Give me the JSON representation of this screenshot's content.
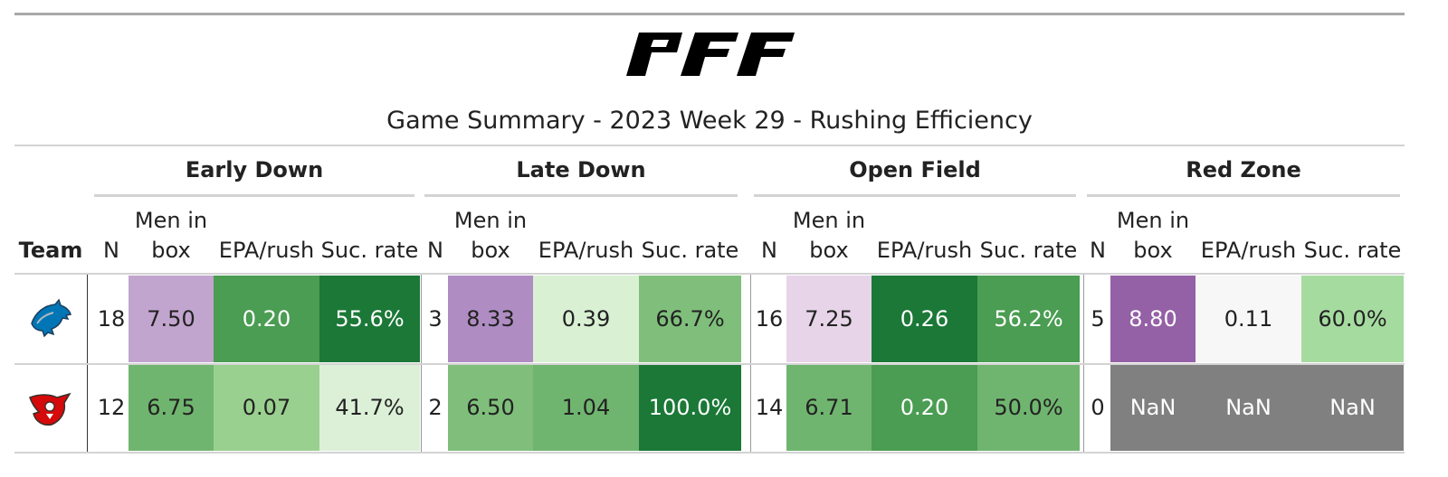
{
  "brand": "PFF",
  "chart_data": {
    "type": "table",
    "title": "Game Summary - 2023 Week 29 - Rushing Efficiency",
    "team_header": "Team",
    "groups": [
      {
        "name": "Early Down",
        "columns": [
          "N",
          "Men in box",
          "EPA/rush",
          "Suc. rate"
        ]
      },
      {
        "name": "Late Down",
        "columns": [
          "N",
          "Men in box",
          "EPA/rush",
          "Suc. rate"
        ]
      },
      {
        "name": "Open Field",
        "columns": [
          "N",
          "Men in box",
          "EPA/rush",
          "Suc. rate"
        ]
      },
      {
        "name": "Red Zone",
        "columns": [
          "N",
          "Men in box",
          "EPA/rush",
          "Suc. rate"
        ]
      }
    ],
    "rows": [
      {
        "team_icon": "detroit-lions-logo-icon",
        "cells": [
          [
            "18",
            "7.50",
            "0.20",
            "55.6%"
          ],
          [
            "3",
            "8.33",
            "0.39",
            "66.7%"
          ],
          [
            "16",
            "7.25",
            "0.26",
            "56.2%"
          ],
          [
            "5",
            "8.80",
            "0.11",
            "60.0%"
          ]
        ],
        "colors": [
          [
            "#ffffff",
            "#c2a5cf",
            "#4a9d52",
            "#1b7837"
          ],
          [
            "#ffffff",
            "#af8dc3",
            "#d9f0d3",
            "#7fbf7b"
          ],
          [
            "#ffffff",
            "#e7d4e8",
            "#1b7837",
            "#4a9d52"
          ],
          [
            "#ffffff",
            "#9460a6",
            "#f7f7f7",
            "#a6dba0"
          ]
        ]
      },
      {
        "team_icon": "tampa-bay-buccaneers-logo-icon",
        "cells": [
          [
            "12",
            "6.75",
            "0.07",
            "41.7%"
          ],
          [
            "2",
            "6.50",
            "1.04",
            "100.0%"
          ],
          [
            "14",
            "6.71",
            "0.20",
            "50.0%"
          ],
          [
            "0",
            "NaN",
            "NaN",
            "NaN"
          ]
        ],
        "colors": [
          [
            "#ffffff",
            "#70b56f",
            "#9ad08f",
            "#dcf0d8"
          ],
          [
            "#ffffff",
            "#7fbf7b",
            "#70b56f",
            "#1b7837"
          ],
          [
            "#ffffff",
            "#70b56f",
            "#4a9d52",
            "#70b56f"
          ],
          [
            "#ffffff",
            "#808080",
            "#808080",
            "#808080"
          ]
        ]
      }
    ]
  }
}
